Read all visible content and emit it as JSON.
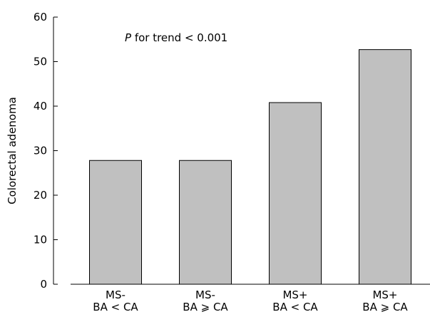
{
  "chart_data": {
    "type": "bar",
    "categories": [
      [
        "MS-",
        "BA < CA"
      ],
      [
        "MS-",
        "BA ⩾ CA"
      ],
      [
        "MS+",
        "BA < CA"
      ],
      [
        "MS+",
        "BA ⩾ CA"
      ]
    ],
    "values": [
      27.8,
      27.8,
      40.8,
      52.7
    ],
    "ylabel": "Colorectal adenoma",
    "xlabel": "",
    "ylim": [
      0,
      60
    ],
    "yticks": [
      0,
      10,
      20,
      30,
      40,
      50,
      60
    ],
    "annotation": {
      "italic": "P",
      "text": " for trend < 0.001"
    },
    "bar_color": "#c0c0c0",
    "grid": false
  }
}
